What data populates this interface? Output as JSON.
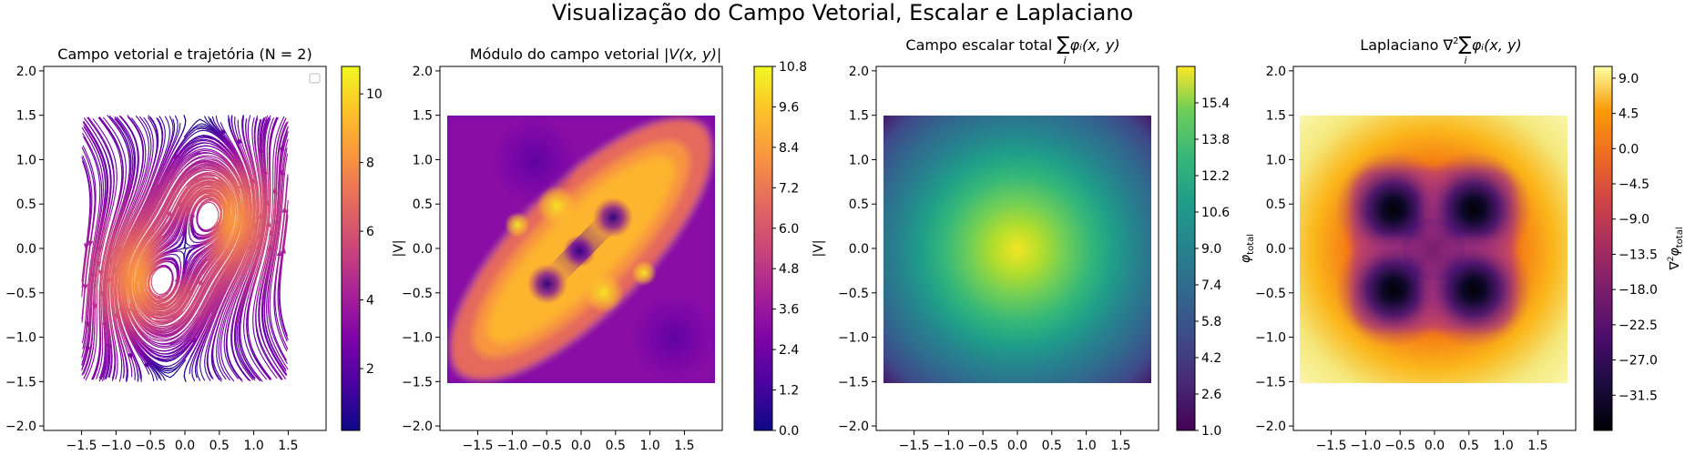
{
  "figure": {
    "suptitle": "Visualização do Campo Vetorial, Escalar e Laplaciano"
  },
  "chart_data": [
    {
      "type": "streamplot",
      "title": "Campo vetorial e trajetória (N = 2)",
      "xlim": [
        -2.05,
        2.05
      ],
      "ylim": [
        -2.05,
        2.05
      ],
      "x_ticks": [
        "−1.5",
        "−1.0",
        "−0.5",
        "0.0",
        "0.5",
        "1.0",
        "1.5"
      ],
      "y_ticks": [
        "−2.0",
        "−1.5",
        "−1.0",
        "−0.5",
        "0.0",
        "0.5",
        "1.0",
        "1.5",
        "2.0"
      ],
      "data_domain": [
        -1.5,
        1.5
      ],
      "singularities": [
        {
          "x": -0.4,
          "y": -0.4
        },
        {
          "x": 0.4,
          "y": 0.4
        }
      ],
      "legend": "empty box, top-right",
      "colormap": "plasma",
      "colorbar": {
        "label": "|V|",
        "ticks": [
          "2",
          "4",
          "6",
          "8",
          "10"
        ],
        "min": 0.2,
        "max": 10.8
      }
    },
    {
      "type": "heatmap",
      "title_text": "Módulo do campo vetorial ",
      "title_math": "|V(x, y)|",
      "xlim": [
        -2.05,
        2.05
      ],
      "ylim": [
        -2.05,
        2.05
      ],
      "x_ticks": [
        "−1.5",
        "−1.0",
        "−0.5",
        "0.0",
        "0.5",
        "1.0",
        "1.5"
      ],
      "y_ticks": [
        "−2.0",
        "−1.5",
        "−1.0",
        "−0.5",
        "0.0",
        "0.5",
        "1.0",
        "1.5",
        "2.0"
      ],
      "data_domain": [
        -1.5,
        1.5
      ],
      "colormap": "plasma",
      "colorbar": {
        "label": "|V|",
        "ticks": [
          "0.0",
          "1.2",
          "2.4",
          "3.6",
          "4.8",
          "6.0",
          "7.2",
          "8.4",
          "9.6",
          "10.8"
        ],
        "min": 0.0,
        "max": 10.8
      }
    },
    {
      "type": "heatmap",
      "title_text": "Campo escalar total ",
      "title_math": "φᵢ(x, y)",
      "xlim": [
        -2.05,
        2.05
      ],
      "ylim": [
        -2.05,
        2.05
      ],
      "x_ticks": [
        "−1.5",
        "−1.0",
        "−0.5",
        "0.0",
        "0.5",
        "1.0",
        "1.5"
      ],
      "y_ticks": [
        "−2.0",
        "−1.5",
        "−1.0",
        "−0.5",
        "0.0",
        "0.5",
        "1.0",
        "1.5",
        "2.0"
      ],
      "data_domain": [
        -1.5,
        1.5
      ],
      "colormap": "viridis",
      "colorbar": {
        "label": "φ",
        "label_sub": "total",
        "ticks": [
          "1.0",
          "2.6",
          "4.2",
          "5.8",
          "7.4",
          "9.0",
          "10.6",
          "12.2",
          "13.8",
          "15.4"
        ],
        "min": 1.0,
        "max": 17.0
      }
    },
    {
      "type": "heatmap",
      "title_text": "Laplaciano ",
      "title_math": "φᵢ(x, y)",
      "xlim": [
        -2.05,
        2.05
      ],
      "ylim": [
        -2.05,
        2.05
      ],
      "x_ticks": [
        "−1.5",
        "−1.0",
        "−0.5",
        "0.0",
        "0.5",
        "1.0",
        "1.5"
      ],
      "y_ticks": [
        "−2.0",
        "−1.5",
        "−1.0",
        "−0.5",
        "0.0",
        "0.5",
        "1.0",
        "1.5",
        "2.0"
      ],
      "data_domain": [
        -1.5,
        1.5
      ],
      "minima": [
        {
          "x": -0.5,
          "y": 0.5
        },
        {
          "x": 0.5,
          "y": 0.5
        },
        {
          "x": -0.5,
          "y": -0.5
        },
        {
          "x": 0.5,
          "y": -0.5
        }
      ],
      "colormap": "inferno",
      "colorbar": {
        "label": "φ",
        "label_sub": "total",
        "ticks": [
          "−31.5",
          "−27.0",
          "−22.5",
          "−18.0",
          "−13.5",
          "−9.0",
          "−4.5",
          "0.0",
          "4.5",
          "9.0"
        ],
        "min": -36.0,
        "max": 10.5
      }
    }
  ]
}
